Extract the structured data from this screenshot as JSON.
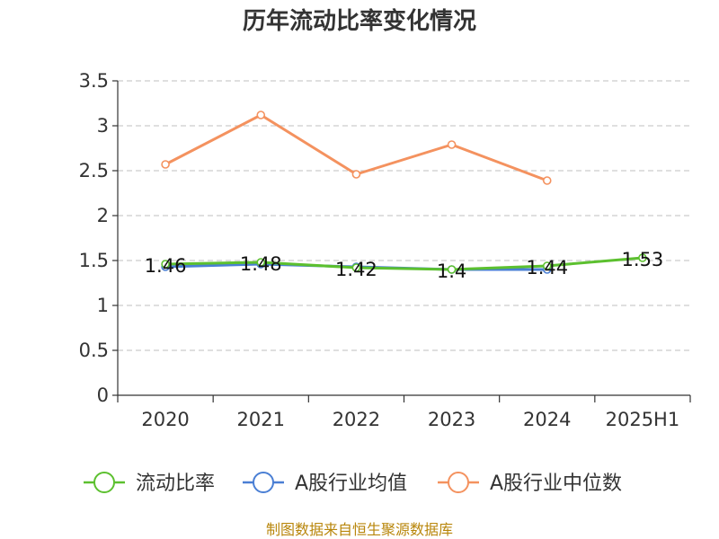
{
  "chart_data": {
    "type": "line",
    "title": "历年流动比率变化情况",
    "categories": [
      "2020",
      "2021",
      "2022",
      "2023",
      "2024",
      "2025H1"
    ],
    "ylim": [
      0,
      3.5
    ],
    "yticks": [
      "0",
      "0.5",
      "1",
      "1.5",
      "2",
      "2.5",
      "3",
      "3.5"
    ],
    "grid": true,
    "legend_position": "bottom",
    "series": [
      {
        "name": "流动比率",
        "color": "#5cc02f",
        "values": [
          1.46,
          1.48,
          1.42,
          1.4,
          1.44,
          1.53
        ],
        "labels": [
          "1.46",
          "1.48",
          "1.42",
          "1.4",
          "1.44",
          "1.53"
        ]
      },
      {
        "name": "A股行业均值",
        "color": "#4a7fd4",
        "values": [
          1.43,
          1.46,
          1.43,
          1.4,
          1.4,
          null
        ]
      },
      {
        "name": "A股行业中位数",
        "color": "#f4925f",
        "values": [
          2.57,
          3.12,
          2.46,
          2.79,
          2.39,
          null
        ]
      }
    ]
  },
  "source_text": "制图数据来自恒生聚源数据库"
}
